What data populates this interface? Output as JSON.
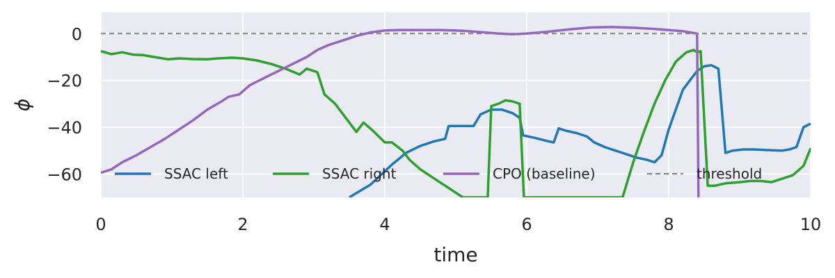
{
  "chart_data": {
    "type": "line",
    "xlabel": "time",
    "ylabel": "ϕ",
    "xlim": [
      0,
      10
    ],
    "ylim": [
      -70,
      9
    ],
    "x_ticks": [
      0,
      2,
      4,
      6,
      8,
      10
    ],
    "y_ticks": [
      0,
      -20,
      -40,
      -60
    ],
    "x_tick_labels": [
      "0",
      "2",
      "4",
      "6",
      "8",
      "10"
    ],
    "y_tick_labels": [
      "0",
      "−20",
      "−40",
      "−60"
    ],
    "grid": true,
    "legend_position": "lower-center",
    "series": [
      {
        "name": "SSAC left",
        "color": "#1f77b4",
        "style": "solid",
        "points": [
          [
            3.5,
            -70
          ],
          [
            3.8,
            -64.5
          ],
          [
            4.1,
            -56
          ],
          [
            4.3,
            -51
          ],
          [
            4.5,
            -48
          ],
          [
            4.7,
            -46
          ],
          [
            4.85,
            -45
          ],
          [
            4.9,
            -39.5
          ],
          [
            5.0,
            -39.5
          ],
          [
            5.15,
            -39.5
          ],
          [
            5.25,
            -39.5
          ],
          [
            5.35,
            -34.5
          ],
          [
            5.5,
            -32.5
          ],
          [
            5.65,
            -32.5
          ],
          [
            5.8,
            -34
          ],
          [
            5.9,
            -36
          ],
          [
            5.95,
            -43.5
          ],
          [
            6.1,
            -44.5
          ],
          [
            6.3,
            -46
          ],
          [
            6.38,
            -46.5
          ],
          [
            6.45,
            -40.5
          ],
          [
            6.55,
            -41.5
          ],
          [
            6.7,
            -42.5
          ],
          [
            6.85,
            -44
          ],
          [
            6.95,
            -46.5
          ],
          [
            7.1,
            -48.5
          ],
          [
            7.25,
            -50
          ],
          [
            7.4,
            -51.5
          ],
          [
            7.55,
            -53
          ],
          [
            7.7,
            -54
          ],
          [
            7.8,
            -55
          ],
          [
            7.9,
            -52
          ],
          [
            8.0,
            -41
          ],
          [
            8.2,
            -24
          ],
          [
            8.3,
            -20
          ],
          [
            8.4,
            -16
          ],
          [
            8.5,
            -14
          ],
          [
            8.6,
            -13.5
          ],
          [
            8.7,
            -15
          ],
          [
            8.8,
            -51
          ],
          [
            8.9,
            -50
          ],
          [
            9.05,
            -49.5
          ],
          [
            9.2,
            -49.5
          ],
          [
            9.4,
            -49.8
          ],
          [
            9.6,
            -50
          ],
          [
            9.7,
            -49.5
          ],
          [
            9.8,
            -48.5
          ],
          [
            9.9,
            -40
          ],
          [
            10.0,
            -38.5
          ]
        ]
      },
      {
        "name": "SSAC right",
        "color": "#2ca02c",
        "style": "solid",
        "points": [
          [
            0,
            -7.5
          ],
          [
            0.15,
            -8.8
          ],
          [
            0.3,
            -8
          ],
          [
            0.45,
            -9
          ],
          [
            0.6,
            -9.2
          ],
          [
            0.75,
            -10
          ],
          [
            0.95,
            -11
          ],
          [
            1.1,
            -10.6
          ],
          [
            1.3,
            -10.9
          ],
          [
            1.5,
            -11
          ],
          [
            1.65,
            -10.6
          ],
          [
            1.85,
            -10.3
          ],
          [
            2.0,
            -10.6
          ],
          [
            2.2,
            -11.5
          ],
          [
            2.4,
            -13
          ],
          [
            2.6,
            -15
          ],
          [
            2.8,
            -17.5
          ],
          [
            2.9,
            -15
          ],
          [
            3.05,
            -16.5
          ],
          [
            3.15,
            -26
          ],
          [
            3.3,
            -30
          ],
          [
            3.5,
            -38
          ],
          [
            3.6,
            -42
          ],
          [
            3.7,
            -38
          ],
          [
            3.85,
            -42
          ],
          [
            4.0,
            -46.5
          ],
          [
            4.1,
            -46.5
          ],
          [
            4.25,
            -50
          ],
          [
            4.35,
            -54
          ],
          [
            4.5,
            -58
          ],
          [
            4.7,
            -62
          ],
          [
            4.9,
            -66
          ],
          [
            5.1,
            -70
          ],
          [
            5.35,
            -70
          ],
          [
            5.45,
            -70
          ],
          [
            5.5,
            -31
          ],
          [
            5.6,
            -30
          ],
          [
            5.7,
            -28.5
          ],
          [
            5.8,
            -29
          ],
          [
            5.9,
            -30
          ],
          [
            5.96,
            -70
          ],
          [
            7.35,
            -70
          ],
          [
            7.5,
            -55
          ],
          [
            7.65,
            -42
          ],
          [
            7.8,
            -30
          ],
          [
            7.95,
            -20
          ],
          [
            8.1,
            -12
          ],
          [
            8.25,
            -8
          ],
          [
            8.35,
            -7
          ],
          [
            8.4,
            -8
          ],
          [
            8.45,
            -7.5
          ],
          [
            8.55,
            -65
          ],
          [
            8.65,
            -65
          ],
          [
            8.8,
            -64
          ],
          [
            9.0,
            -63.5
          ],
          [
            9.15,
            -63
          ],
          [
            9.3,
            -63
          ],
          [
            9.45,
            -63.5
          ],
          [
            9.6,
            -62
          ],
          [
            9.75,
            -60.5
          ],
          [
            9.9,
            -56.5
          ],
          [
            10.0,
            -49
          ]
        ]
      },
      {
        "name": "CPO (baseline)",
        "color": "#9467bd",
        "style": "solid",
        "points": [
          [
            0,
            -59.5
          ],
          [
            0.15,
            -58
          ],
          [
            0.3,
            -55
          ],
          [
            0.5,
            -52
          ],
          [
            0.7,
            -48.5
          ],
          [
            0.9,
            -45
          ],
          [
            1.1,
            -41
          ],
          [
            1.3,
            -37
          ],
          [
            1.5,
            -32.5
          ],
          [
            1.7,
            -29
          ],
          [
            1.8,
            -27
          ],
          [
            1.95,
            -26
          ],
          [
            2.1,
            -22
          ],
          [
            2.3,
            -19
          ],
          [
            2.5,
            -16
          ],
          [
            2.7,
            -13
          ],
          [
            2.9,
            -10
          ],
          [
            3.05,
            -7
          ],
          [
            3.2,
            -5
          ],
          [
            3.4,
            -3
          ],
          [
            3.6,
            -1
          ],
          [
            3.8,
            0.5
          ],
          [
            4.0,
            1.3
          ],
          [
            4.2,
            1.5
          ],
          [
            4.5,
            1.5
          ],
          [
            4.8,
            1.5
          ],
          [
            5.1,
            1.2
          ],
          [
            5.4,
            0.5
          ],
          [
            5.6,
            0
          ],
          [
            5.8,
            -0.3
          ],
          [
            6.0,
            0
          ],
          [
            6.3,
            0.8
          ],
          [
            6.6,
            1.8
          ],
          [
            6.9,
            2.6
          ],
          [
            7.2,
            2.8
          ],
          [
            7.5,
            2.5
          ],
          [
            7.8,
            2
          ],
          [
            8.0,
            1.5
          ],
          [
            8.2,
            1
          ],
          [
            8.3,
            0.5
          ],
          [
            8.4,
            0
          ],
          [
            8.42,
            -70
          ]
        ]
      },
      {
        "name": "threshold",
        "color": "#808080",
        "style": "dashed",
        "points": [
          [
            0,
            0
          ],
          [
            10,
            0
          ]
        ]
      }
    ]
  }
}
